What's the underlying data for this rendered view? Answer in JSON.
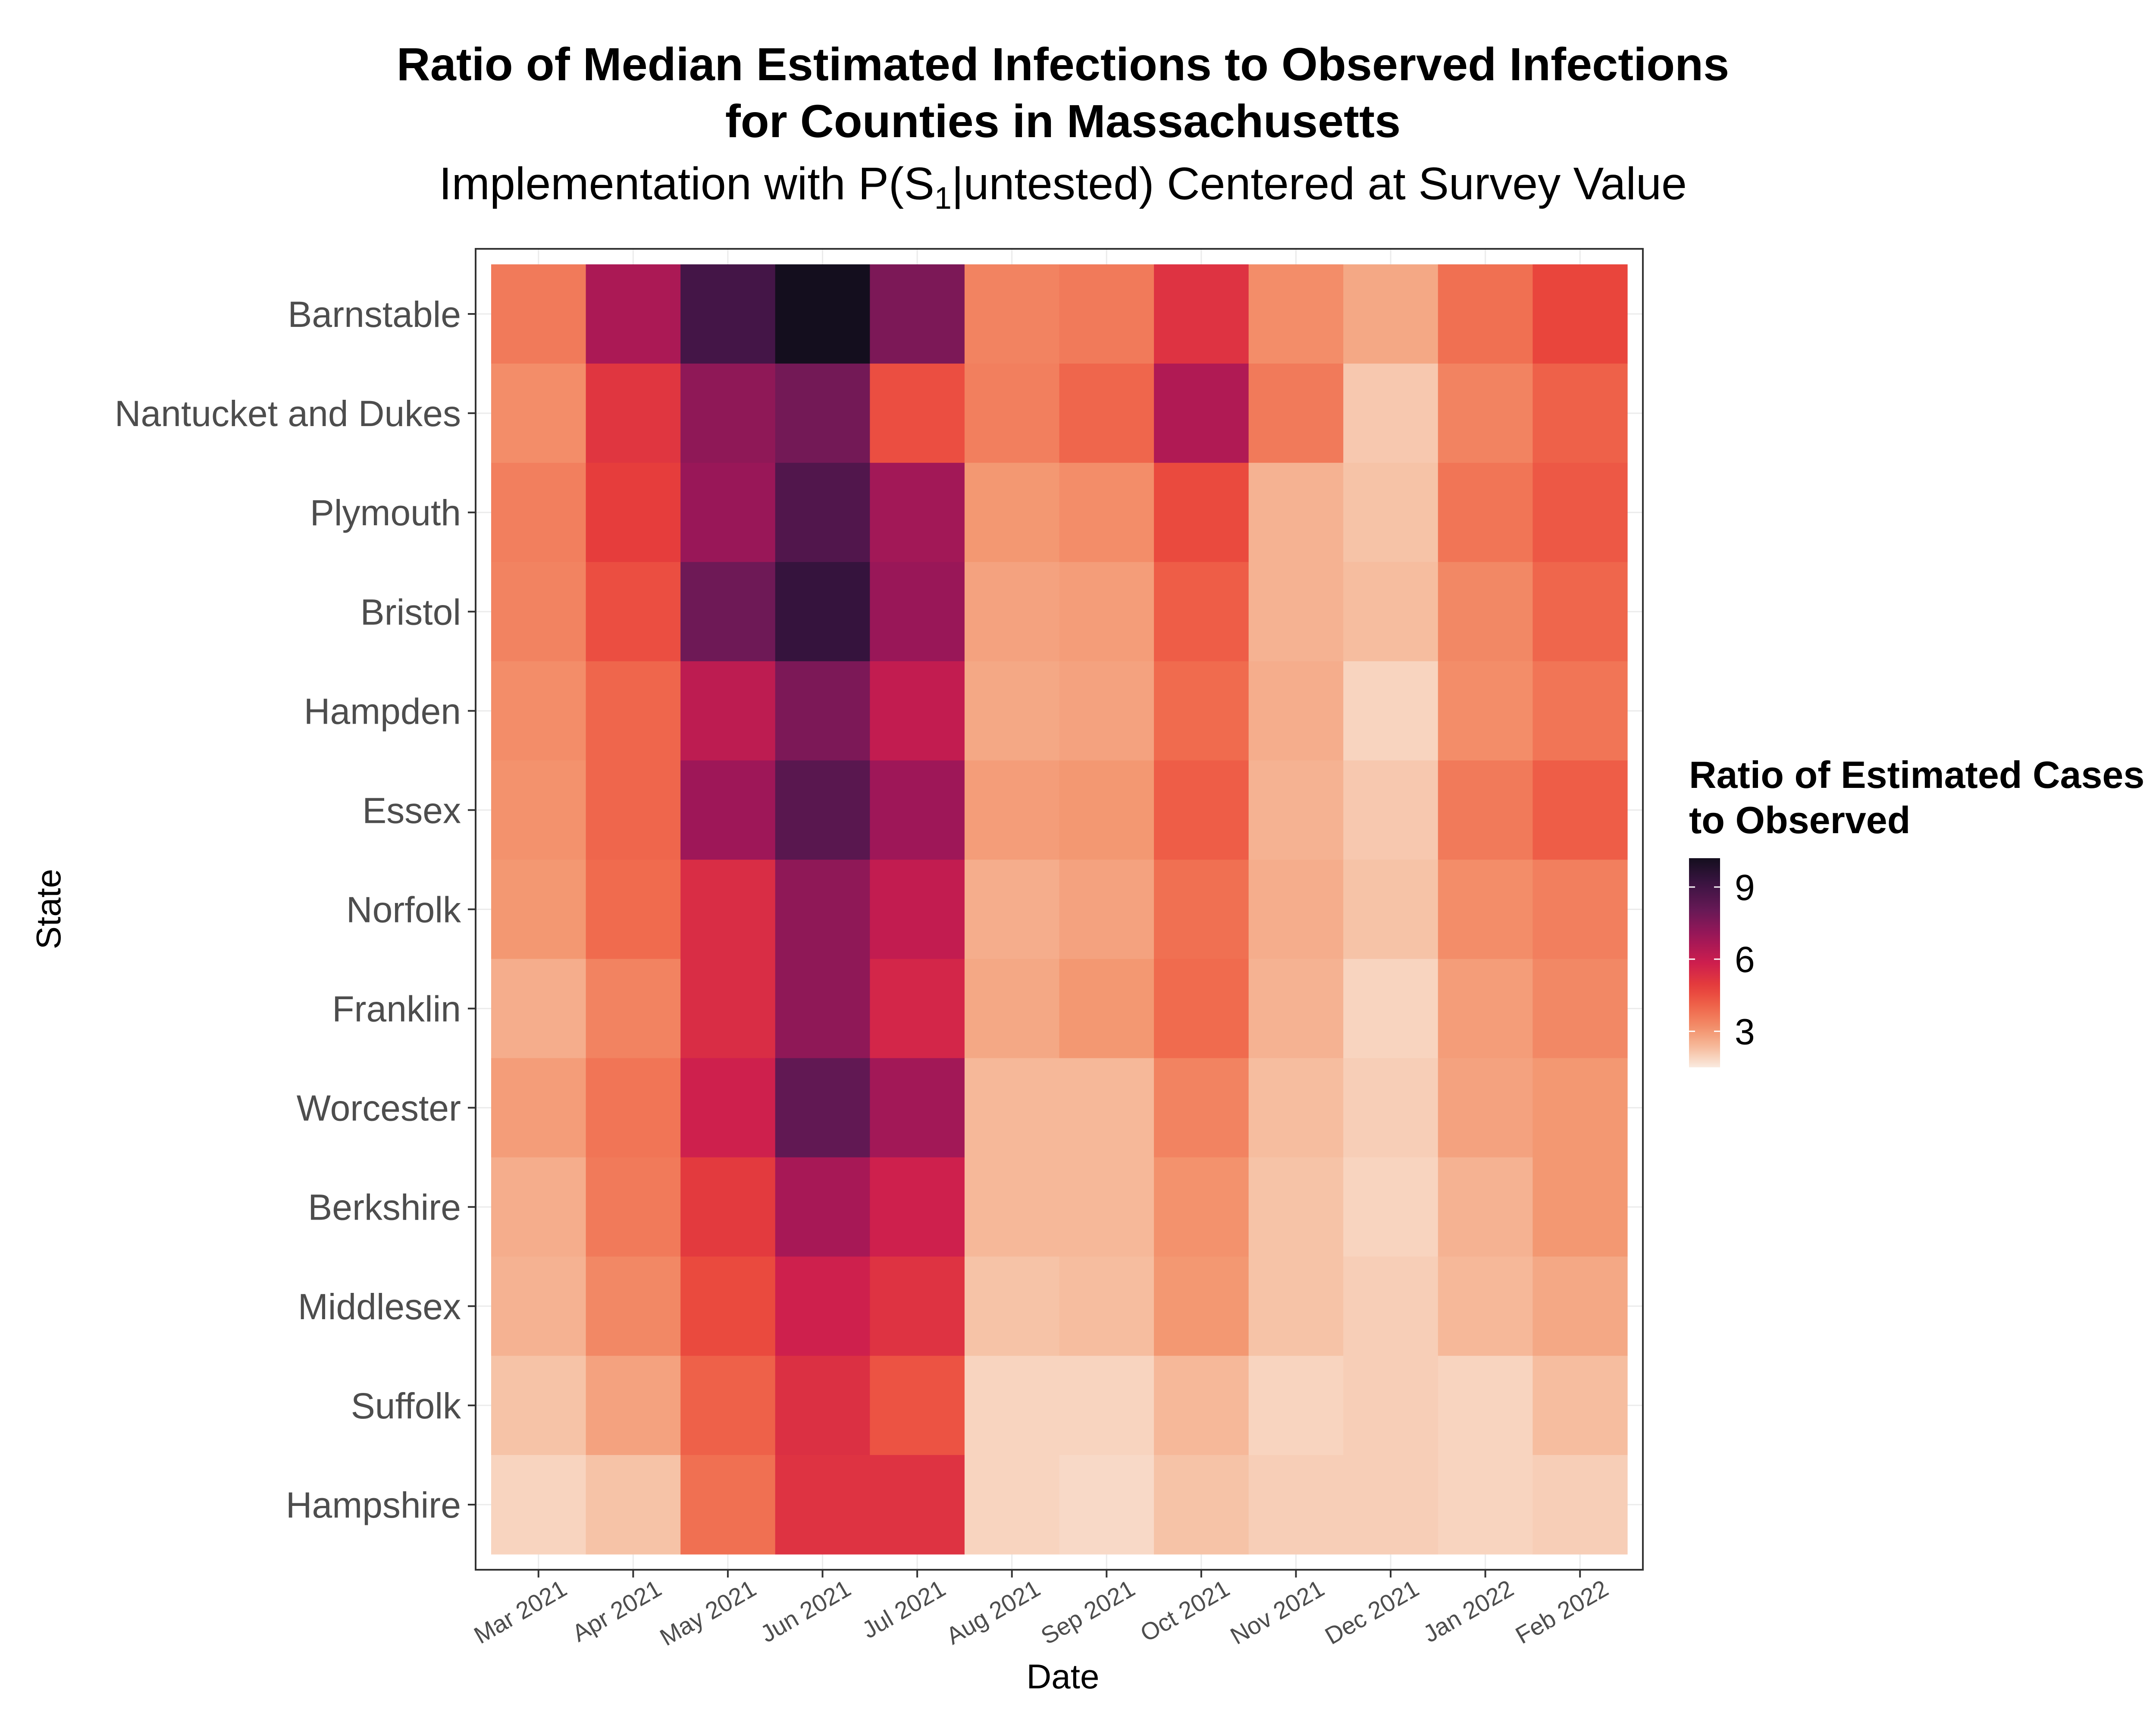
{
  "chart_data": {
    "type": "heatmap",
    "title_lines": [
      "Ratio of Median Estimated Infections to Observed Infections",
      "for Counties in Massachusetts"
    ],
    "subtitle": {
      "prefix": "Implementation with P",
      "open": "(",
      "s": "S",
      "sub": "1",
      "bar": "|",
      "cond": "untested",
      "close": ")",
      "suffix": " Centered at Survey Value"
    },
    "xlabel": "Date",
    "ylabel": "State",
    "x_categories": [
      "Mar 2021",
      "Apr 2021",
      "May 2021",
      "Jun 2021",
      "Jul 2021",
      "Aug 2021",
      "Sep 2021",
      "Oct 2021",
      "Nov 2021",
      "Dec 2021",
      "Jan 2022",
      "Feb 2022"
    ],
    "y_categories": [
      "Barnstable",
      "Nantucket and Dukes",
      "Plymouth",
      "Bristol",
      "Hampden",
      "Essex",
      "Norfolk",
      "Franklin",
      "Worcester",
      "Berkshire",
      "Middlesex",
      "Suffolk",
      "Hampshire"
    ],
    "values": [
      [
        3.6,
        6.6,
        8.9,
        10.2,
        7.6,
        3.4,
        3.6,
        5.2,
        3.2,
        2.7,
        3.8,
        4.7
      ],
      [
        3.2,
        5.1,
        7.2,
        7.8,
        4.5,
        3.5,
        4.0,
        6.5,
        3.6,
        2.1,
        3.4,
        4.1
      ],
      [
        3.5,
        4.9,
        7.0,
        8.6,
        6.8,
        3.0,
        3.2,
        4.6,
        2.5,
        2.2,
        3.7,
        4.3
      ],
      [
        3.4,
        4.5,
        7.9,
        9.3,
        7.0,
        2.8,
        2.9,
        4.2,
        2.5,
        2.3,
        3.3,
        4.0
      ],
      [
        3.2,
        4.0,
        6.2,
        7.6,
        6.1,
        2.7,
        2.8,
        3.9,
        2.6,
        1.9,
        3.2,
        3.7
      ],
      [
        3.1,
        4.0,
        6.9,
        8.4,
        6.9,
        2.9,
        3.0,
        4.2,
        2.5,
        2.1,
        3.6,
        4.2
      ],
      [
        3.0,
        3.9,
        5.4,
        7.2,
        6.1,
        2.6,
        2.8,
        3.8,
        2.6,
        2.2,
        3.2,
        3.5
      ],
      [
        2.6,
        3.4,
        5.4,
        7.2,
        5.6,
        2.7,
        3.0,
        3.9,
        2.5,
        1.9,
        2.9,
        3.3
      ],
      [
        2.9,
        3.7,
        5.8,
        8.2,
        6.8,
        2.4,
        2.4,
        3.4,
        2.3,
        2.0,
        2.8,
        3.0
      ],
      [
        2.6,
        3.6,
        5.0,
        6.7,
        5.8,
        2.4,
        2.4,
        3.1,
        2.2,
        1.9,
        2.5,
        3.0
      ],
      [
        2.5,
        3.3,
        4.6,
        5.8,
        5.2,
        2.2,
        2.3,
        3.0,
        2.2,
        2.0,
        2.4,
        2.7
      ],
      [
        2.2,
        2.8,
        4.1,
        5.3,
        4.4,
        1.9,
        1.9,
        2.4,
        1.9,
        2.0,
        1.9,
        2.3
      ],
      [
        1.9,
        2.2,
        3.8,
        5.2,
        5.2,
        1.9,
        1.8,
        2.2,
        2.0,
        2.0,
        1.9,
        2.0
      ]
    ],
    "color_range": [
      1.5,
      10.2
    ],
    "legend": {
      "title_lines": [
        "Ratio of Estimated Cases",
        "to Observed"
      ],
      "ticks": [
        3,
        6,
        9
      ],
      "position": "right"
    },
    "background_grid": true
  }
}
